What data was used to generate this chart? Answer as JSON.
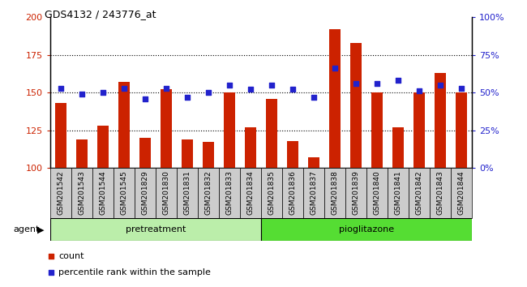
{
  "title": "GDS4132 / 243776_at",
  "samples": [
    "GSM201542",
    "GSM201543",
    "GSM201544",
    "GSM201545",
    "GSM201829",
    "GSM201830",
    "GSM201831",
    "GSM201832",
    "GSM201833",
    "GSM201834",
    "GSM201835",
    "GSM201836",
    "GSM201837",
    "GSM201838",
    "GSM201839",
    "GSM201840",
    "GSM201841",
    "GSM201842",
    "GSM201843",
    "GSM201844"
  ],
  "counts": [
    143,
    119,
    128,
    157,
    120,
    152,
    119,
    117,
    150,
    127,
    146,
    118,
    107,
    192,
    183,
    150,
    127,
    150,
    163,
    150
  ],
  "percentiles": [
    53,
    49,
    50,
    53,
    46,
    53,
    47,
    50,
    55,
    52,
    55,
    52,
    47,
    66,
    56,
    56,
    58,
    51,
    55,
    53
  ],
  "bar_color": "#cc2200",
  "dot_color": "#2222cc",
  "ylim_left": [
    100,
    200
  ],
  "ylim_right": [
    0,
    100
  ],
  "yticks_left": [
    100,
    125,
    150,
    175,
    200
  ],
  "ytick_labels_left": [
    "100",
    "125",
    "150",
    "175",
    "200"
  ],
  "yticks_right": [
    0,
    25,
    50,
    75,
    100
  ],
  "ytick_labels_right": [
    "0%",
    "25%",
    "50%",
    "75%",
    "100%"
  ],
  "pretreat_label": "pretreatment",
  "piog_label": "pioglitazone",
  "pretreat_color": "#bbeeaa",
  "piog_color": "#55dd33",
  "pretreat_count": 10,
  "piog_count": 10,
  "agent_label": "agent",
  "legend_count_label": "count",
  "legend_pct_label": "percentile rank within the sample",
  "dotted_lines": [
    125,
    150,
    175
  ],
  "bar_width": 0.55,
  "plot_bg": "#ffffff",
  "xtick_bg": "#cccccc"
}
